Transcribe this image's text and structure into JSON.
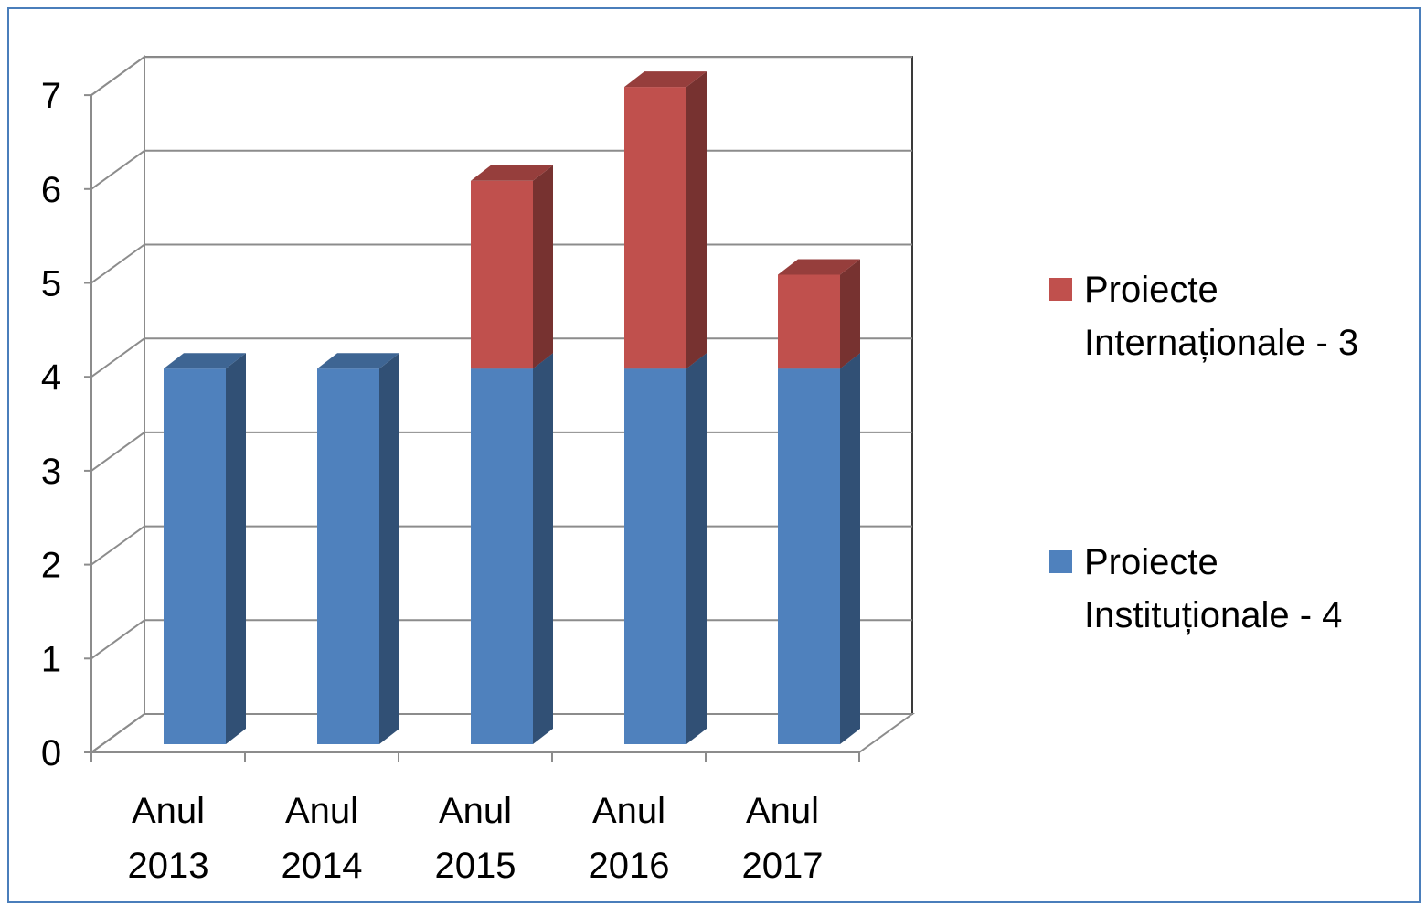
{
  "chart_data": {
    "type": "bar",
    "stacked": true,
    "three_d": true,
    "categories": [
      "Anul 2013",
      "Anul 2014",
      "Anul 2015",
      "Anul 2016",
      "Anul 2017"
    ],
    "category_lines": [
      [
        "Anul",
        "2013"
      ],
      [
        "Anul",
        "2014"
      ],
      [
        "Anul",
        "2015"
      ],
      [
        "Anul",
        "2016"
      ],
      [
        "Anul",
        "2017"
      ]
    ],
    "series": [
      {
        "name": "Proiecte Instituționale - 4",
        "values": [
          4,
          4,
          4,
          4,
          4
        ],
        "color": "#4f81bd"
      },
      {
        "name": "Proiecte Internaționale - 3",
        "values": [
          0,
          0,
          2,
          3,
          1
        ],
        "color": "#c0504d"
      }
    ],
    "title": "",
    "xlabel": "",
    "ylabel": "",
    "ylim": [
      0,
      7
    ],
    "yticks": [
      "0",
      "1",
      "2",
      "3",
      "4",
      "5",
      "6",
      "7"
    ],
    "grid": true,
    "legend_position": "right"
  },
  "legend": {
    "items": [
      {
        "line1": "Proiecte",
        "line2": "Internaționale - 3",
        "color": "#c0504d"
      },
      {
        "line1": "Proiecte",
        "line2": "Instituționale - 4",
        "color": "#4f81bd"
      }
    ]
  }
}
